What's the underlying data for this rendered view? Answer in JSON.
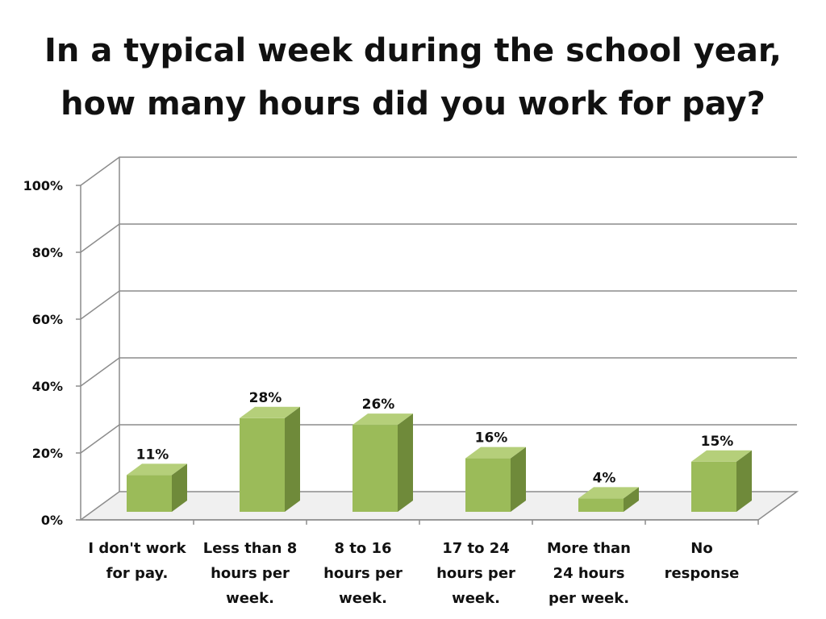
{
  "title_lines": [
    "In a typical week during the school year,",
    "how many hours did you work for pay?"
  ],
  "chart_data": {
    "type": "bar",
    "style": "3d-column",
    "title": "In a typical week during the school year, how many hours did you work for pay?",
    "categories": [
      [
        "I don't work",
        "for pay."
      ],
      [
        "Less than 8",
        "hours per",
        "week."
      ],
      [
        "8 to 16",
        "hours per",
        "week."
      ],
      [
        "17 to 24",
        "hours per",
        "week."
      ],
      [
        "More than",
        "24 hours",
        "per week."
      ],
      [
        "No",
        "response"
      ]
    ],
    "values": [
      11,
      28,
      26,
      16,
      4,
      15
    ],
    "value_labels": [
      "11%",
      "28%",
      "26%",
      "16%",
      "4%",
      "15%"
    ],
    "y_ticks": [
      "0%",
      "20%",
      "40%",
      "60%",
      "80%",
      "100%"
    ],
    "ylim": [
      0,
      100
    ],
    "grid": true,
    "legend": "none",
    "colors": {
      "bar_front": "#9bbb59",
      "bar_side": "#6f8a3a",
      "bar_top": "#b5cf7a",
      "grid": "#8c8c8c",
      "floor": "#f0f0f0"
    }
  }
}
